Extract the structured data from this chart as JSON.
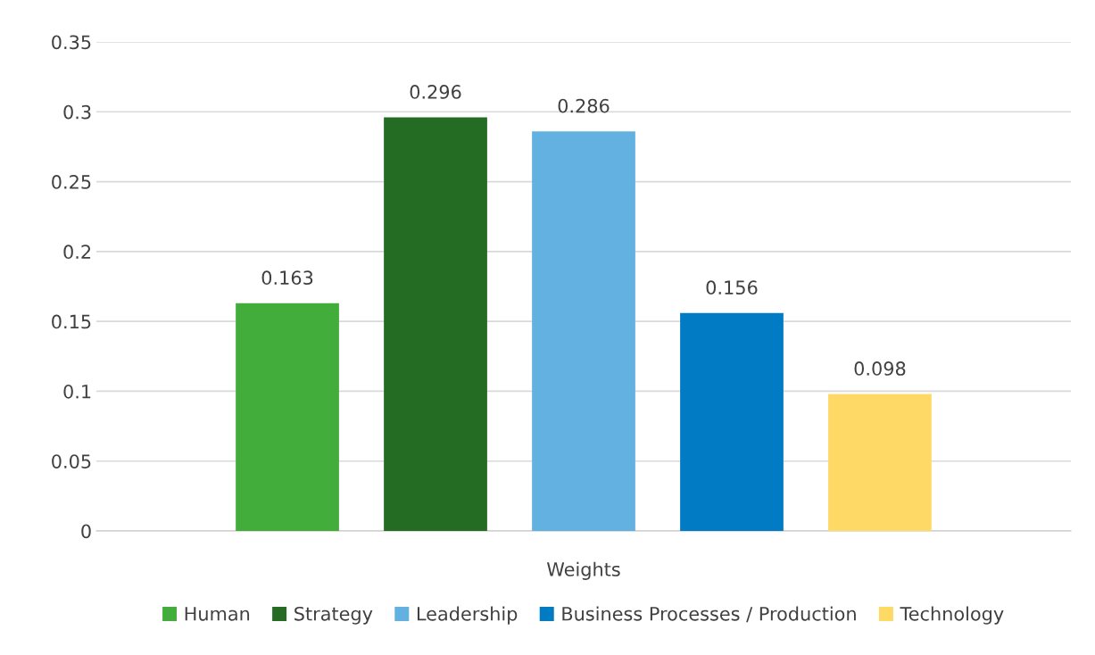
{
  "chart_data": {
    "type": "bar",
    "categories": [
      "Weights"
    ],
    "series": [
      {
        "name": "Human",
        "color": "#43ad3c",
        "values": [
          0.163
        ]
      },
      {
        "name": "Strategy",
        "color": "#246b24",
        "values": [
          0.296
        ]
      },
      {
        "name": "Leadership",
        "color": "#62b1e0",
        "values": [
          0.286
        ]
      },
      {
        "name": "Business Processes / Production",
        "color": "#007bc4",
        "values": [
          0.156
        ]
      },
      {
        "name": "Technology",
        "color": "#ffd966",
        "values": [
          0.098
        ]
      }
    ],
    "ylim": [
      0,
      0.35
    ],
    "yticks": [
      0,
      0.05,
      0.1,
      0.15,
      0.2,
      0.25,
      0.3,
      0.35
    ],
    "grid": "y",
    "legend": "bottom",
    "data_labels": true
  }
}
